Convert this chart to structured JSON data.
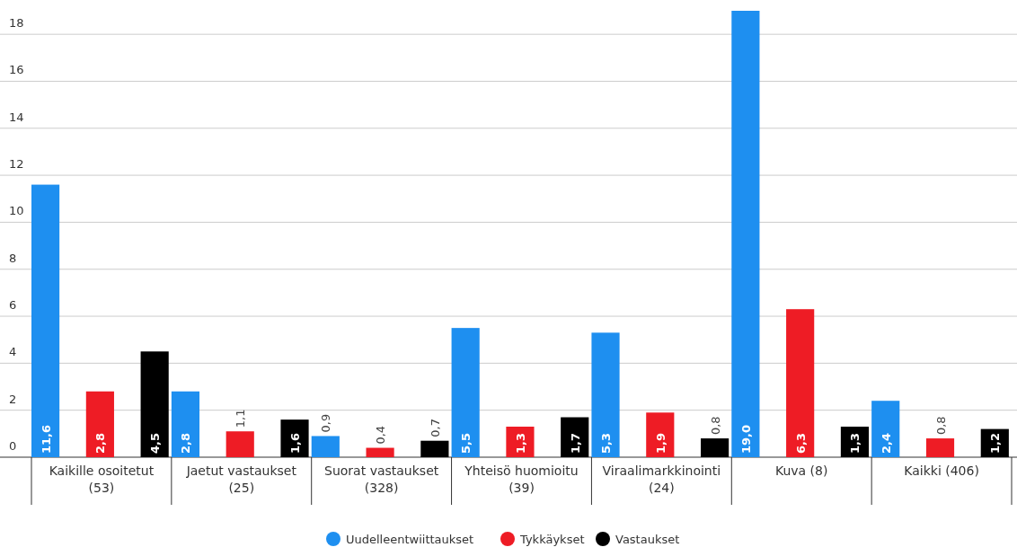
{
  "chart_data": {
    "type": "bar",
    "categories": [
      "Kaikille osoitetut (53)",
      "Jaetut vastaukset (25)",
      "Suorat vastaukset (328)",
      "Yhteisö huomioitu (39)",
      "Viraalimarkkinointi (24)",
      "Kuva (8)",
      "Kaikki (406)"
    ],
    "series": [
      {
        "name": "Uudelleentwiittaukset",
        "color": "#1e8ff0",
        "values": [
          11.6,
          2.8,
          0.9,
          5.5,
          5.3,
          19.0,
          2.4
        ],
        "value_labels": [
          "11,6",
          "2,8",
          "0,9",
          "5,5",
          "5,3",
          "19,0",
          "2,4"
        ]
      },
      {
        "name": "Tykkäykset",
        "color": "#ee1c25",
        "values": [
          2.8,
          1.1,
          0.4,
          1.3,
          1.9,
          6.3,
          0.8
        ],
        "value_labels": [
          "2,8",
          "1,1",
          "0,4",
          "1,3",
          "1,9",
          "6,3",
          "0,8"
        ]
      },
      {
        "name": "Vastaukset",
        "color": "#000000",
        "values": [
          4.5,
          1.6,
          0.7,
          1.7,
          0.8,
          1.3,
          1.2
        ],
        "value_labels": [
          "4,5",
          "1,6",
          "0,7",
          "1,7",
          "0,8",
          "1,3",
          "1,2"
        ]
      }
    ],
    "ylim": [
      0,
      19
    ],
    "yticks": [
      0,
      2,
      4,
      6,
      8,
      10,
      12,
      14,
      16,
      18
    ],
    "grid": "y",
    "legend": "bottom"
  }
}
